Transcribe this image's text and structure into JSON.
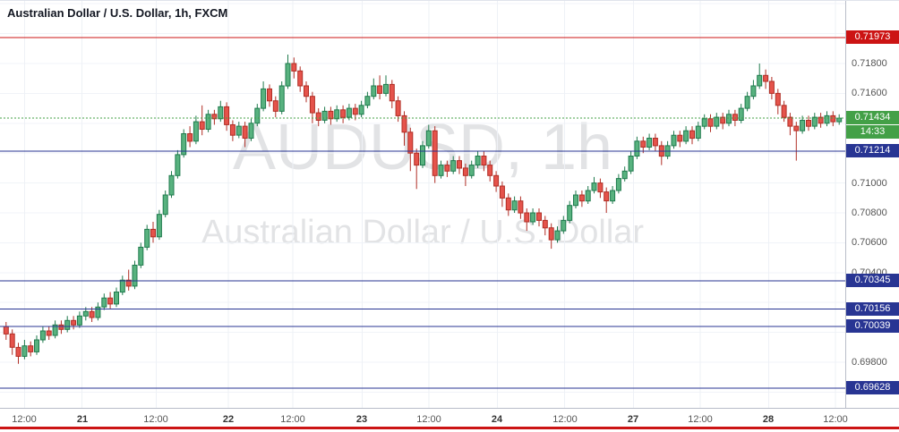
{
  "legend": {
    "text": "Australian Dollar / U.S. Dollar, 1h, FXCM"
  },
  "watermark": {
    "line1": "AUDUSD, 1h",
    "line2": "Australian Dollar / U.S. Dollar"
  },
  "colors": {
    "up_fill": "#58b27f",
    "up_border": "#1f7a4d",
    "down_fill": "#e5534b",
    "down_border": "#b02e25",
    "level_blue": "#283593",
    "alert_red": "#cc1414",
    "price_green": "#43a047",
    "grid_h": "#f0f3f8",
    "grid_v": "#eef1f6",
    "axis_text": "#555555",
    "axis_border": "#b9bdc9"
  },
  "chart_data": {
    "type": "candlestick",
    "title": "Australian Dollar / U.S. Dollar, 1h, FXCM",
    "symbol": "AUDUSD",
    "interval": "1h",
    "exchange": "FXCM",
    "ylim": [
      0.69495,
      0.72219
    ],
    "grid_step": 0.002,
    "current_price": {
      "value": 0.71434,
      "label": "0.71434",
      "countdown": "14:33"
    },
    "price_ticks": [
      {
        "text": "0.71800",
        "value": 0.718
      },
      {
        "text": "0.71600",
        "value": 0.716
      },
      {
        "text": "0.71000",
        "value": 0.71
      },
      {
        "text": "0.70800",
        "value": 0.708
      },
      {
        "text": "0.70600",
        "value": 0.706
      },
      {
        "text": "0.70400",
        "value": 0.704
      },
      {
        "text": "0.69800",
        "value": 0.698
      }
    ],
    "price_badges": [
      {
        "text": "0.71973",
        "value": 0.71973,
        "color_key": "alert_red",
        "offset_rows": 0
      },
      {
        "text": "0.71434",
        "value": 0.71434,
        "color_key": "price_green",
        "offset_rows": 0
      },
      {
        "text": "14:33",
        "value": 0.71434,
        "color_key": "price_green",
        "offset_rows": 1
      },
      {
        "text": "0.71214",
        "value": 0.71214,
        "color_key": "level_blue",
        "offset_rows": 0
      },
      {
        "text": "0.70345",
        "value": 0.70345,
        "color_key": "level_blue",
        "offset_rows": 0
      },
      {
        "text": "0.70156",
        "value": 0.70156,
        "color_key": "level_blue",
        "offset_rows": 0
      },
      {
        "text": "0.70039",
        "value": 0.70039,
        "color_key": "level_blue",
        "offset_rows": 0
      },
      {
        "text": "0.69628",
        "value": 0.69628,
        "color_key": "level_blue",
        "offset_rows": 0
      }
    ],
    "levels": [
      {
        "price": 0.71973,
        "color_key": "alert_red",
        "style": "solid"
      },
      {
        "price": 0.71434,
        "color_key": "price_green",
        "style": "dashed"
      },
      {
        "price": 0.71214,
        "color_key": "level_blue",
        "style": "solid"
      },
      {
        "price": 0.70345,
        "color_key": "level_blue",
        "style": "solid"
      },
      {
        "price": 0.70156,
        "color_key": "level_blue",
        "style": "solid"
      },
      {
        "price": 0.70039,
        "color_key": "level_blue",
        "style": "solid"
      },
      {
        "price": 0.69628,
        "color_key": "level_blue",
        "style": "solid"
      }
    ],
    "x_axis_labels": [
      {
        "text": "12:00",
        "i": 3,
        "strong": false
      },
      {
        "text": "21",
        "i": 12.4,
        "strong": true
      },
      {
        "text": "12:00",
        "i": 24.5,
        "strong": false
      },
      {
        "text": "22",
        "i": 36.3,
        "strong": true
      },
      {
        "text": "12:00",
        "i": 46.8,
        "strong": false
      },
      {
        "text": "23",
        "i": 58.1,
        "strong": true
      },
      {
        "text": "12:00",
        "i": 69,
        "strong": false
      },
      {
        "text": "24",
        "i": 80.2,
        "strong": true
      },
      {
        "text": "12:00",
        "i": 91.2,
        "strong": false
      },
      {
        "text": "27",
        "i": 102.4,
        "strong": true
      },
      {
        "text": "12:00",
        "i": 113.3,
        "strong": false
      },
      {
        "text": "28",
        "i": 124.5,
        "strong": true
      },
      {
        "text": "12:00",
        "i": 135.4,
        "strong": false
      }
    ],
    "candles": [
      [
        0.7004,
        0.7007,
        0.6995,
        0.6999
      ],
      [
        0.6999,
        0.7002,
        0.6985,
        0.699
      ],
      [
        0.699,
        0.6993,
        0.6979,
        0.6984
      ],
      [
        0.6984,
        0.6995,
        0.6982,
        0.6991
      ],
      [
        0.6991,
        0.6994,
        0.6984,
        0.6987
      ],
      [
        0.6987,
        0.6998,
        0.6985,
        0.6995
      ],
      [
        0.6995,
        0.7004,
        0.6993,
        0.7001
      ],
      [
        0.7001,
        0.7004,
        0.6995,
        0.6998
      ],
      [
        0.6998,
        0.7008,
        0.6996,
        0.7005
      ],
      [
        0.7005,
        0.7008,
        0.6999,
        0.7002
      ],
      [
        0.7002,
        0.7011,
        0.7,
        0.7008
      ],
      [
        0.7008,
        0.7011,
        0.7002,
        0.7005
      ],
      [
        0.7005,
        0.7014,
        0.7003,
        0.7011
      ],
      [
        0.7011,
        0.7017,
        0.7008,
        0.7014
      ],
      [
        0.7014,
        0.7017,
        0.7007,
        0.701
      ],
      [
        0.701,
        0.702,
        0.7008,
        0.7017
      ],
      [
        0.7017,
        0.7026,
        0.7015,
        0.7023
      ],
      [
        0.7023,
        0.7027,
        0.7016,
        0.7019
      ],
      [
        0.7019,
        0.703,
        0.7017,
        0.7027
      ],
      [
        0.7027,
        0.7038,
        0.7025,
        0.7035
      ],
      [
        0.7035,
        0.7042,
        0.7028,
        0.7031
      ],
      [
        0.7031,
        0.7048,
        0.7029,
        0.7045
      ],
      [
        0.7045,
        0.706,
        0.7043,
        0.7057
      ],
      [
        0.7057,
        0.7072,
        0.7055,
        0.7069
      ],
      [
        0.7069,
        0.7074,
        0.706,
        0.7064
      ],
      [
        0.7064,
        0.7082,
        0.7062,
        0.7079
      ],
      [
        0.7079,
        0.7095,
        0.7077,
        0.7092
      ],
      [
        0.7092,
        0.7108,
        0.709,
        0.7105
      ],
      [
        0.7105,
        0.7122,
        0.7103,
        0.7119
      ],
      [
        0.7119,
        0.7136,
        0.7117,
        0.7133
      ],
      [
        0.7133,
        0.7138,
        0.7124,
        0.7128
      ],
      [
        0.7128,
        0.7145,
        0.7126,
        0.7141
      ],
      [
        0.7141,
        0.7152,
        0.7132,
        0.7136
      ],
      [
        0.7136,
        0.7149,
        0.7134,
        0.7146
      ],
      [
        0.7146,
        0.7149,
        0.7139,
        0.7143
      ],
      [
        0.7143,
        0.7155,
        0.7141,
        0.7151
      ],
      [
        0.7151,
        0.7154,
        0.7135,
        0.7139
      ],
      [
        0.7139,
        0.7142,
        0.7128,
        0.7132
      ],
      [
        0.7132,
        0.7141,
        0.713,
        0.7138
      ],
      [
        0.7138,
        0.7141,
        0.7124,
        0.713
      ],
      [
        0.713,
        0.7143,
        0.7128,
        0.714
      ],
      [
        0.714,
        0.7153,
        0.7138,
        0.715
      ],
      [
        0.715,
        0.7168,
        0.7148,
        0.7163
      ],
      [
        0.7163,
        0.7166,
        0.7151,
        0.7155
      ],
      [
        0.7155,
        0.7158,
        0.7144,
        0.7148
      ],
      [
        0.7148,
        0.7168,
        0.7146,
        0.7165
      ],
      [
        0.7165,
        0.7186,
        0.7163,
        0.718
      ],
      [
        0.718,
        0.7184,
        0.717,
        0.7175
      ],
      [
        0.7175,
        0.7178,
        0.7161,
        0.7165
      ],
      [
        0.7165,
        0.7168,
        0.7154,
        0.7158
      ],
      [
        0.7158,
        0.7161,
        0.714,
        0.7147
      ],
      [
        0.7147,
        0.715,
        0.7138,
        0.7142
      ],
      [
        0.7142,
        0.7151,
        0.714,
        0.7148
      ],
      [
        0.7148,
        0.7151,
        0.7139,
        0.7143
      ],
      [
        0.7143,
        0.7152,
        0.7141,
        0.7149
      ],
      [
        0.7149,
        0.7152,
        0.714,
        0.7144
      ],
      [
        0.7144,
        0.7153,
        0.7142,
        0.715
      ],
      [
        0.715,
        0.7153,
        0.7142,
        0.7146
      ],
      [
        0.7146,
        0.7155,
        0.7144,
        0.7152
      ],
      [
        0.7152,
        0.7161,
        0.715,
        0.7158
      ],
      [
        0.7158,
        0.717,
        0.7156,
        0.7165
      ],
      [
        0.7165,
        0.7172,
        0.7156,
        0.716
      ],
      [
        0.716,
        0.7172,
        0.7158,
        0.7166
      ],
      [
        0.7166,
        0.7169,
        0.715,
        0.7155
      ],
      [
        0.7155,
        0.7158,
        0.7141,
        0.7145
      ],
      [
        0.7145,
        0.7148,
        0.7125,
        0.7134
      ],
      [
        0.7134,
        0.7137,
        0.7108,
        0.712
      ],
      [
        0.712,
        0.7123,
        0.7096,
        0.7112
      ],
      [
        0.7112,
        0.7128,
        0.711,
        0.7125
      ],
      [
        0.7125,
        0.7139,
        0.7123,
        0.7135
      ],
      [
        0.7135,
        0.7138,
        0.71,
        0.7105
      ],
      [
        0.7105,
        0.7115,
        0.7103,
        0.7112
      ],
      [
        0.7112,
        0.7115,
        0.7104,
        0.7108
      ],
      [
        0.7108,
        0.7118,
        0.7106,
        0.7115
      ],
      [
        0.7115,
        0.7118,
        0.7106,
        0.711
      ],
      [
        0.711,
        0.7113,
        0.7098,
        0.7105
      ],
      [
        0.7105,
        0.7115,
        0.7103,
        0.7112
      ],
      [
        0.7112,
        0.7121,
        0.711,
        0.7118
      ],
      [
        0.7118,
        0.7121,
        0.7108,
        0.7112
      ],
      [
        0.7112,
        0.7115,
        0.7101,
        0.7105
      ],
      [
        0.7105,
        0.7108,
        0.7094,
        0.7098
      ],
      [
        0.7098,
        0.7101,
        0.7084,
        0.709
      ],
      [
        0.709,
        0.7093,
        0.7078,
        0.7082
      ],
      [
        0.7082,
        0.7091,
        0.708,
        0.7088
      ],
      [
        0.7088,
        0.7091,
        0.7076,
        0.708
      ],
      [
        0.708,
        0.7083,
        0.7068,
        0.7074
      ],
      [
        0.7074,
        0.7083,
        0.7072,
        0.708
      ],
      [
        0.708,
        0.7083,
        0.7071,
        0.7075
      ],
      [
        0.7075,
        0.7078,
        0.7065,
        0.707
      ],
      [
        0.707,
        0.7073,
        0.7056,
        0.7062
      ],
      [
        0.7062,
        0.7071,
        0.706,
        0.7068
      ],
      [
        0.7068,
        0.7078,
        0.7066,
        0.7075
      ],
      [
        0.7075,
        0.7088,
        0.7073,
        0.7085
      ],
      [
        0.7085,
        0.7095,
        0.7083,
        0.7092
      ],
      [
        0.7092,
        0.7095,
        0.7084,
        0.7088
      ],
      [
        0.7088,
        0.7098,
        0.7086,
        0.7095
      ],
      [
        0.7095,
        0.7104,
        0.7093,
        0.71
      ],
      [
        0.71,
        0.7103,
        0.709,
        0.7094
      ],
      [
        0.7094,
        0.7097,
        0.708,
        0.7088
      ],
      [
        0.7088,
        0.7098,
        0.7086,
        0.7095
      ],
      [
        0.7095,
        0.7106,
        0.7093,
        0.7103
      ],
      [
        0.7103,
        0.7111,
        0.7101,
        0.7108
      ],
      [
        0.7108,
        0.7121,
        0.7106,
        0.7118
      ],
      [
        0.7118,
        0.7131,
        0.7116,
        0.7128
      ],
      [
        0.7128,
        0.7131,
        0.712,
        0.7124
      ],
      [
        0.7124,
        0.7133,
        0.7122,
        0.713
      ],
      [
        0.713,
        0.7133,
        0.7121,
        0.7125
      ],
      [
        0.7125,
        0.7128,
        0.7112,
        0.7118
      ],
      [
        0.7118,
        0.7128,
        0.7116,
        0.7125
      ],
      [
        0.7125,
        0.7135,
        0.7123,
        0.7132
      ],
      [
        0.7132,
        0.7135,
        0.7124,
        0.7128
      ],
      [
        0.7128,
        0.7138,
        0.7126,
        0.7135
      ],
      [
        0.7135,
        0.7138,
        0.7126,
        0.713
      ],
      [
        0.713,
        0.7141,
        0.7128,
        0.7138
      ],
      [
        0.7138,
        0.7146,
        0.7136,
        0.7143
      ],
      [
        0.7143,
        0.7146,
        0.7134,
        0.7138
      ],
      [
        0.7138,
        0.7147,
        0.7136,
        0.7144
      ],
      [
        0.7144,
        0.7147,
        0.7136,
        0.714
      ],
      [
        0.714,
        0.7149,
        0.7138,
        0.7146
      ],
      [
        0.7146,
        0.7149,
        0.7138,
        0.7142
      ],
      [
        0.7142,
        0.7153,
        0.714,
        0.715
      ],
      [
        0.715,
        0.7161,
        0.7148,
        0.7158
      ],
      [
        0.7158,
        0.7169,
        0.7156,
        0.7165
      ],
      [
        0.7165,
        0.718,
        0.7163,
        0.7172
      ],
      [
        0.7172,
        0.7176,
        0.7163,
        0.7168
      ],
      [
        0.7168,
        0.7171,
        0.7156,
        0.716
      ],
      [
        0.716,
        0.7163,
        0.7146,
        0.7152
      ],
      [
        0.7152,
        0.7155,
        0.7141,
        0.7144
      ],
      [
        0.7144,
        0.7147,
        0.7132,
        0.7138
      ],
      [
        0.7138,
        0.7141,
        0.7115,
        0.7135
      ],
      [
        0.7135,
        0.7145,
        0.7133,
        0.7142
      ],
      [
        0.7142,
        0.7145,
        0.7135,
        0.7138
      ],
      [
        0.7138,
        0.7147,
        0.7136,
        0.7144
      ],
      [
        0.7144,
        0.7147,
        0.7137,
        0.714
      ],
      [
        0.714,
        0.7148,
        0.7138,
        0.7145
      ],
      [
        0.7145,
        0.7148,
        0.7138,
        0.7141
      ],
      [
        0.7141,
        0.7146,
        0.7139,
        0.71434
      ]
    ]
  }
}
